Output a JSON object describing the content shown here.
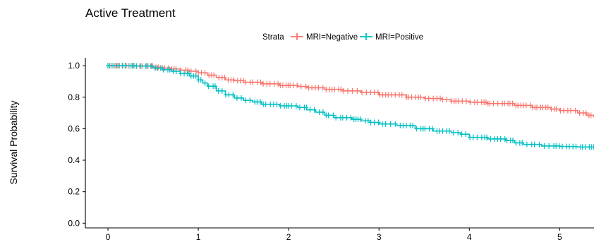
{
  "chart_data": {
    "type": "line",
    "subtype": "kaplan-meier",
    "title": "Active Treatment",
    "xlabel": "",
    "ylabel": "Survival Probability",
    "xlim": [
      -0.25,
      5.38
    ],
    "ylim": [
      -0.03,
      1.05
    ],
    "x_ticks": [
      0,
      1,
      2,
      3,
      4,
      5
    ],
    "y_ticks": [
      0.0,
      0.2,
      0.4,
      0.6,
      0.8,
      1.0
    ],
    "x_tick_labels": [
      "0",
      "1",
      "2",
      "3",
      "4",
      "5"
    ],
    "y_tick_labels": [
      "0.0",
      "0.2",
      "0.4",
      "0.6",
      "0.8",
      "1.0"
    ],
    "grid": false,
    "legend": {
      "title": "Strata",
      "position": "top"
    },
    "series": [
      {
        "name": "MRI=Negative",
        "color": "#F8766D",
        "points": [
          [
            0,
            1.0
          ],
          [
            0.3,
            0.998
          ],
          [
            0.5,
            0.99
          ],
          [
            0.6,
            0.985
          ],
          [
            0.7,
            0.98
          ],
          [
            0.8,
            0.972
          ],
          [
            0.9,
            0.965
          ],
          [
            1.0,
            0.955
          ],
          [
            1.1,
            0.94
          ],
          [
            1.2,
            0.925
          ],
          [
            1.3,
            0.91
          ],
          [
            1.4,
            0.905
          ],
          [
            1.5,
            0.895
          ],
          [
            1.7,
            0.885
          ],
          [
            1.9,
            0.875
          ],
          [
            2.1,
            0.868
          ],
          [
            2.2,
            0.86
          ],
          [
            2.4,
            0.85
          ],
          [
            2.6,
            0.84
          ],
          [
            2.8,
            0.83
          ],
          [
            3.0,
            0.815
          ],
          [
            3.3,
            0.8
          ],
          [
            3.5,
            0.792
          ],
          [
            3.7,
            0.785
          ],
          [
            3.8,
            0.775
          ],
          [
            4.0,
            0.768
          ],
          [
            4.2,
            0.76
          ],
          [
            4.5,
            0.748
          ],
          [
            4.7,
            0.735
          ],
          [
            4.9,
            0.725
          ],
          [
            5.0,
            0.715
          ],
          [
            5.2,
            0.7
          ],
          [
            5.3,
            0.685
          ],
          [
            5.38,
            0.67
          ]
        ]
      },
      {
        "name": "MRI=Positive",
        "color": "#00BFC4",
        "points": [
          [
            0,
            1.0
          ],
          [
            0.3,
            0.998
          ],
          [
            0.5,
            0.985
          ],
          [
            0.6,
            0.975
          ],
          [
            0.7,
            0.965
          ],
          [
            0.8,
            0.95
          ],
          [
            0.9,
            0.935
          ],
          [
            1.0,
            0.91
          ],
          [
            1.05,
            0.89
          ],
          [
            1.1,
            0.87
          ],
          [
            1.2,
            0.84
          ],
          [
            1.3,
            0.815
          ],
          [
            1.4,
            0.795
          ],
          [
            1.5,
            0.78
          ],
          [
            1.6,
            0.77
          ],
          [
            1.7,
            0.755
          ],
          [
            1.9,
            0.745
          ],
          [
            2.1,
            0.735
          ],
          [
            2.2,
            0.72
          ],
          [
            2.3,
            0.705
          ],
          [
            2.4,
            0.685
          ],
          [
            2.5,
            0.67
          ],
          [
            2.7,
            0.66
          ],
          [
            2.8,
            0.65
          ],
          [
            2.9,
            0.64
          ],
          [
            3.0,
            0.63
          ],
          [
            3.2,
            0.62
          ],
          [
            3.4,
            0.6
          ],
          [
            3.6,
            0.585
          ],
          [
            3.8,
            0.575
          ],
          [
            3.9,
            0.565
          ],
          [
            4.0,
            0.545
          ],
          [
            4.2,
            0.535
          ],
          [
            4.4,
            0.525
          ],
          [
            4.5,
            0.51
          ],
          [
            4.6,
            0.5
          ],
          [
            4.8,
            0.49
          ],
          [
            5.0,
            0.487
          ],
          [
            5.2,
            0.484
          ],
          [
            5.38,
            0.482
          ]
        ]
      }
    ]
  }
}
